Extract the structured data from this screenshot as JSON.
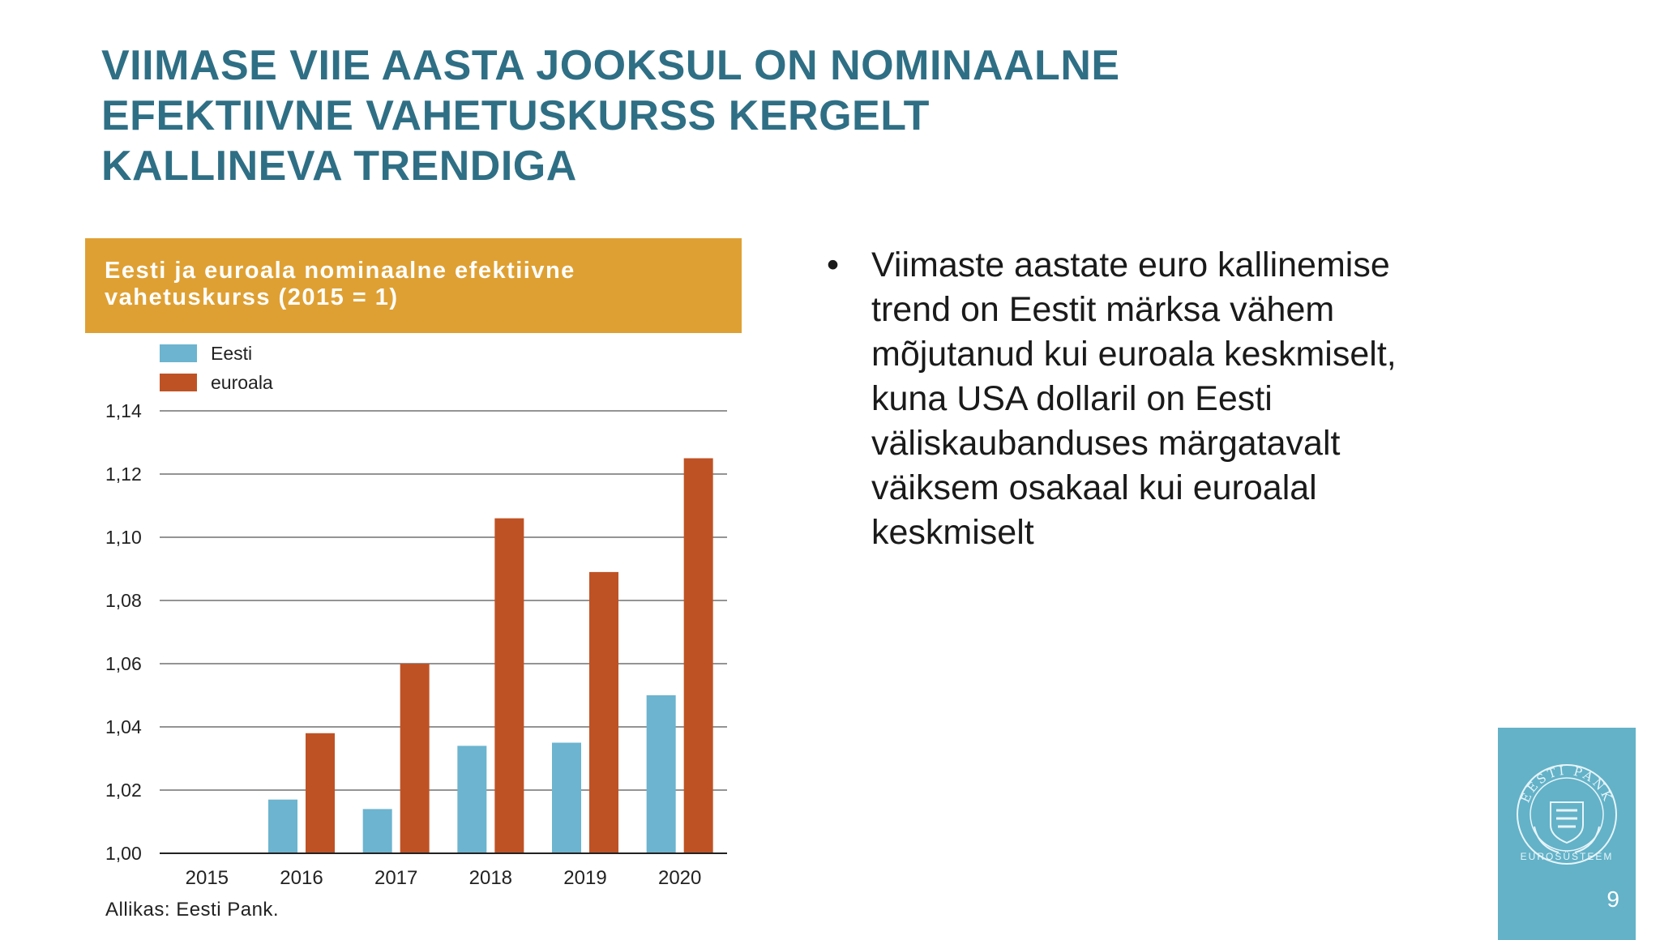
{
  "slide": {
    "title_lines": [
      "VIIMASE VIIE AASTA JOOKSUL ON NOMINAALNE",
      "EFEKTIIVNE VAHETUSKURSS KERGELT",
      "KALLINEVA TRENDIGA"
    ],
    "bullet": "Viimaste aastate euro kallinemise trend on Eestit märksa vähem mõjutanud kui euroala keskmiselt, kuna USA dollaril on Eesti väliskaubanduses märgatavalt väiksem osakaal kui euroalal keskmiselt",
    "page_number": "9",
    "brand": {
      "seal_text": "EESTI PANK",
      "caption": "EUROSÜSTEEM"
    },
    "colors": {
      "title": "#2f6f85",
      "chart_header": "#dfa033",
      "brand_panel": "#63b2c8"
    }
  },
  "chart_header": {
    "title_lines": [
      "Eesti ja euroala nominaalne efektiivne",
      "vahetuskurss (2015 = 1)"
    ]
  },
  "chart_data": {
    "type": "bar",
    "categories": [
      "2015",
      "2016",
      "2017",
      "2018",
      "2019",
      "2020"
    ],
    "series": [
      {
        "name": "Eesti",
        "color": "#6cb4cf",
        "values": [
          1.0,
          1.017,
          1.014,
          1.034,
          1.035,
          1.05
        ]
      },
      {
        "name": "euroala",
        "color": "#bf5224",
        "values": [
          1.0,
          1.038,
          1.06,
          1.106,
          1.089,
          1.125
        ]
      }
    ],
    "ylim": [
      1.0,
      1.14
    ],
    "yticks": [
      {
        "value": 1.0,
        "label": "1,00"
      },
      {
        "value": 1.02,
        "label": "1,02"
      },
      {
        "value": 1.04,
        "label": "1,04"
      },
      {
        "value": 1.06,
        "label": "1,06"
      },
      {
        "value": 1.08,
        "label": "1,08"
      },
      {
        "value": 1.1,
        "label": "1,10"
      },
      {
        "value": 1.12,
        "label": "1,12"
      },
      {
        "value": 1.14,
        "label": "1,14"
      }
    ],
    "grid": true,
    "legend": "top-left",
    "source": "Allikas: Eesti Pank."
  }
}
